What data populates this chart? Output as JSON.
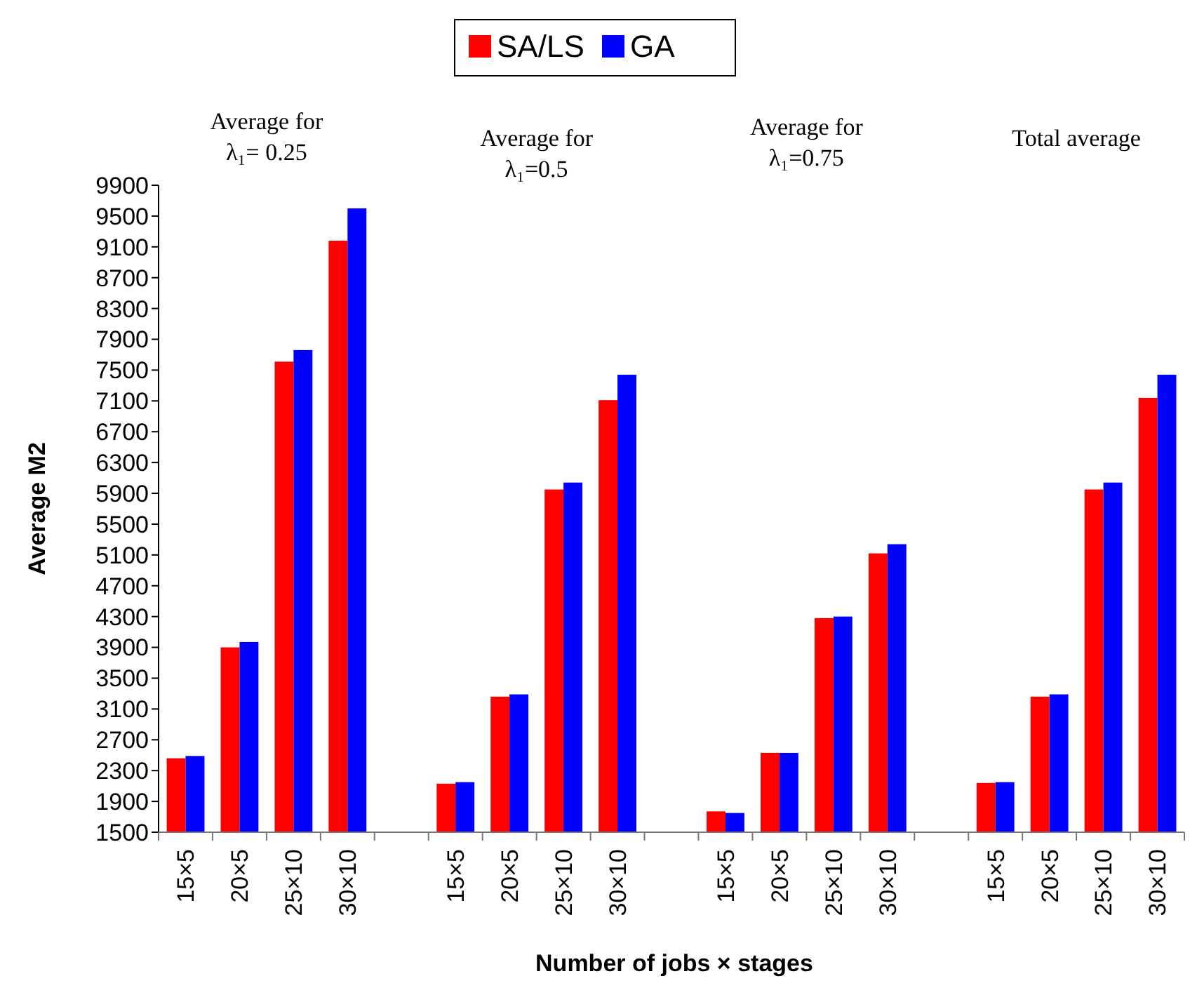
{
  "chart_data": {
    "type": "bar",
    "xlabel": "Number of jobs × stages",
    "ylabel": "Average M2",
    "categories": [
      "15×5",
      "20×5",
      "25×10",
      "30×10",
      null,
      "15×5",
      "20×5",
      "25×10",
      "30×10",
      null,
      "15×5",
      "20×5",
      "25×10",
      "30×10",
      null,
      "15×5",
      "20×5",
      "25×10",
      "30×10"
    ],
    "series": [
      {
        "name": "SA/LS",
        "color": "#ff0000",
        "values": [
          2460,
          3900,
          7610,
          9180,
          null,
          2130,
          3260,
          5950,
          7110,
          null,
          1770,
          2530,
          4280,
          5120,
          null,
          2140,
          3260,
          5950,
          7140
        ]
      },
      {
        "name": "GA",
        "color": "#0000ff",
        "values": [
          2490,
          3970,
          7760,
          9600,
          null,
          2150,
          3290,
          6040,
          7440,
          null,
          1750,
          2530,
          4300,
          5240,
          null,
          2150,
          3290,
          6040,
          7440
        ]
      }
    ],
    "ylim": [
      1500,
      9900
    ],
    "yticks": [
      1500,
      1900,
      2300,
      2700,
      3100,
      3500,
      3900,
      4300,
      4700,
      5100,
      5500,
      5900,
      6300,
      6700,
      7100,
      7500,
      7900,
      8300,
      8700,
      9100,
      9500,
      9900
    ],
    "legend": "top",
    "grid": false,
    "annotations": [
      "Average for\nλ₁= 0.25",
      "Average for\nλ₁=0.5",
      "Average for\nλ₁=0.75",
      "Total average"
    ]
  }
}
